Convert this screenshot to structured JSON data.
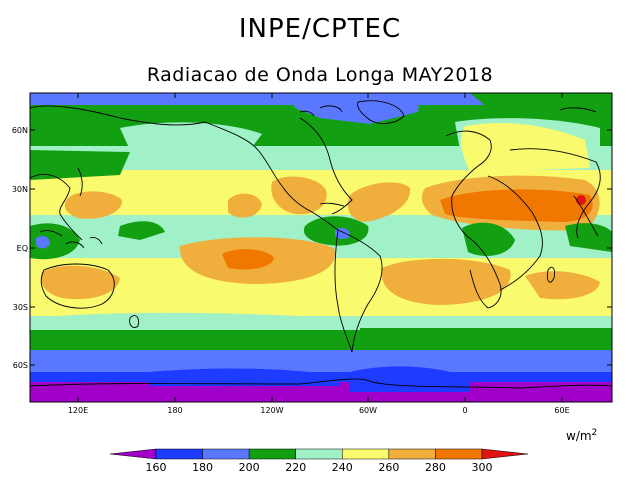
{
  "header": {
    "title": "INPE/CPTEC",
    "subtitle": "Radiacao de Onda Longa MAY2018"
  },
  "map": {
    "lat_labels": [
      "60N",
      "30N",
      "EQ",
      "30S",
      "60S"
    ],
    "lon_labels": [
      "120E",
      "180",
      "120W",
      "60W",
      "0",
      "60E"
    ],
    "frame_color": "#000000"
  },
  "legend": {
    "units_base": "w/m",
    "units_exp": "2",
    "ticks": [
      "160",
      "180",
      "200",
      "220",
      "240",
      "260",
      "280",
      "300"
    ],
    "colors": [
      "#a000c8",
      "#1e3cff",
      "#5a78ff",
      "#12a012",
      "#a0f0c8",
      "#fafa6e",
      "#f0af3c",
      "#f07800",
      "#e11414"
    ]
  }
}
